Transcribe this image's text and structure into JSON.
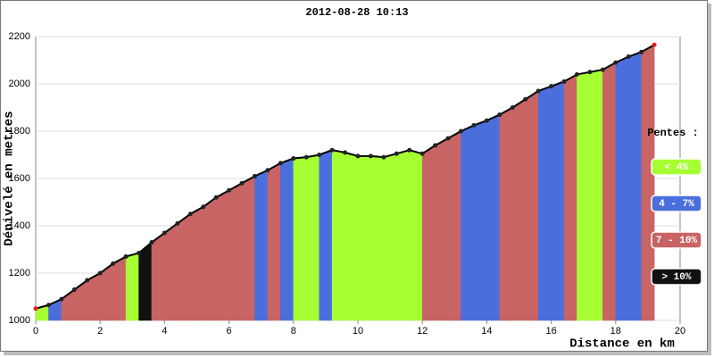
{
  "chart_data": {
    "type": "profile",
    "title": "2012-08-28 10:13",
    "x_label": "Distance en km",
    "y_label": "Dénivelé en metres",
    "x": [
      0,
      0.4,
      0.8,
      1.2,
      1.6,
      2.0,
      2.4,
      2.8,
      3.2,
      3.6,
      4.0,
      4.4,
      4.8,
      5.2,
      5.6,
      6.0,
      6.4,
      6.8,
      7.2,
      7.6,
      8.0,
      8.4,
      8.8,
      9.2,
      9.6,
      10.0,
      10.4,
      10.8,
      11.2,
      11.6,
      12.0,
      12.4,
      12.8,
      13.2,
      13.6,
      14.0,
      14.4,
      14.8,
      15.2,
      15.6,
      16.0,
      16.4,
      16.8,
      17.2,
      17.6,
      18.0,
      18.4,
      18.8,
      19.2
    ],
    "values": [
      1050,
      1065,
      1090,
      1130,
      1170,
      1200,
      1240,
      1270,
      1285,
      1330,
      1370,
      1410,
      1450,
      1480,
      1520,
      1550,
      1580,
      1610,
      1635,
      1665,
      1685,
      1690,
      1700,
      1720,
      1710,
      1695,
      1695,
      1690,
      1705,
      1720,
      1705,
      1740,
      1770,
      1800,
      1825,
      1845,
      1870,
      1900,
      1935,
      1970,
      1990,
      2010,
      2040,
      2050,
      2060,
      2090,
      2115,
      2135,
      2165
    ],
    "bar_colors": [
      "#a6ff33",
      "#4a6fdd",
      "#c86464",
      "#c86464",
      "#c86464",
      "#c86464",
      "#c86464",
      "#a6ff33",
      "#111111",
      "#c86464",
      "#c86464",
      "#c86464",
      "#c86464",
      "#c86464",
      "#c86464",
      "#c86464",
      "#c86464",
      "#4a6fdd",
      "#c86464",
      "#4a6fdd",
      "#a6ff33",
      "#a6ff33",
      "#4a6fdd",
      "#a6ff33",
      "#a6ff33",
      "#a6ff33",
      "#a6ff33",
      "#a6ff33",
      "#a6ff33",
      "#a6ff33",
      "#c86464",
      "#c86464",
      "#c86464",
      "#4a6fdd",
      "#4a6fdd",
      "#4a6fdd",
      "#c86464",
      "#c86464",
      "#c86464",
      "#4a6fdd",
      "#4a6fdd",
      "#c86464",
      "#a6ff33",
      "#a6ff33",
      "#c86464",
      "#4a6fdd",
      "#4a6fdd",
      "#c86464"
    ],
    "legend_title": "Pentes :",
    "series": [
      {
        "name": "< 4%",
        "color": "#a6ff33"
      },
      {
        "name": "4 - 7%",
        "color": "#4a6fdd"
      },
      {
        "name": "7 - 10%",
        "color": "#c86464"
      },
      {
        "name": "> 10%",
        "color": "#111111"
      }
    ],
    "xlim": [
      0,
      20
    ],
    "xticks": [
      0,
      2,
      4,
      6,
      8,
      10,
      12,
      14,
      16,
      18,
      20
    ],
    "ylim": [
      1000,
      2200
    ],
    "yticks": [
      1000,
      1200,
      1400,
      1600,
      1800,
      2000,
      2200
    ],
    "grid": true
  }
}
